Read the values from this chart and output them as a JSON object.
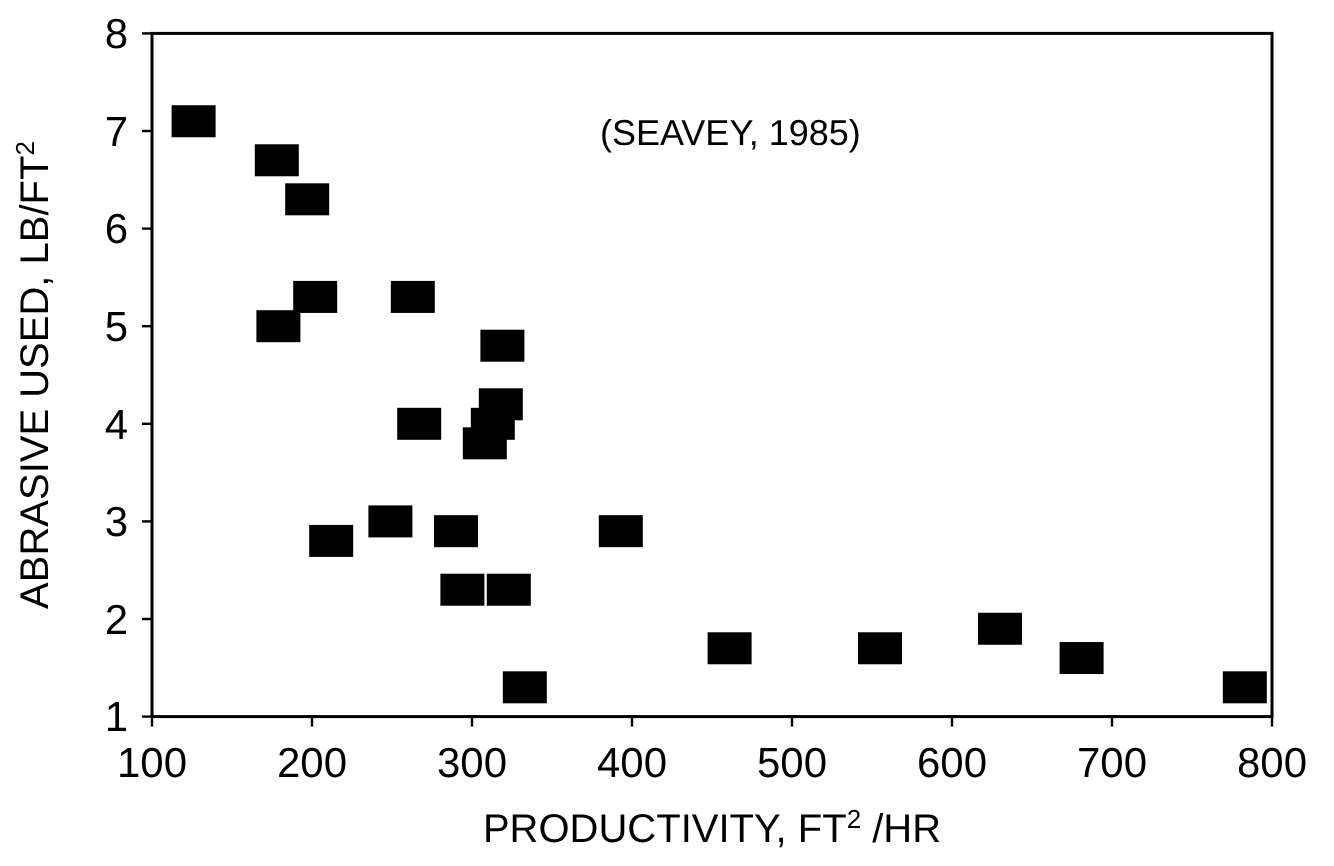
{
  "chart_data": {
    "type": "scatter",
    "xlabel": "PRODUCTIVITY, FT$^{2}$ /HR",
    "ylabel": "ABRASIVE USED, LB/FT$^{2}$",
    "annotations": [
      "(SEAVEY, 1985)"
    ],
    "x": [
      126,
      178,
      197,
      202,
      179,
      263,
      319,
      267,
      318,
      313,
      308,
      249,
      212,
      290,
      294,
      323,
      333,
      393,
      461,
      555,
      630,
      681,
      783
    ],
    "series": [
      {
        "color": "#000000",
        "values": [
          7.1,
          6.7,
          6.3,
          5.3,
          5.0,
          5.3,
          4.8,
          4.0,
          4.2,
          4.0,
          3.8,
          3.0,
          2.8,
          2.9,
          2.3,
          2.3,
          1.3,
          2.9,
          1.7,
          1.7,
          1.9,
          1.6,
          1.3
        ]
      }
    ],
    "xlim": [
      100,
      800
    ],
    "xticks": [
      100,
      200,
      300,
      400,
      500,
      600,
      700,
      800
    ],
    "ylim": [
      1,
      8
    ],
    "yticks": [
      1,
      2,
      3,
      4,
      5,
      6,
      7,
      8
    ],
    "marker": "square"
  }
}
